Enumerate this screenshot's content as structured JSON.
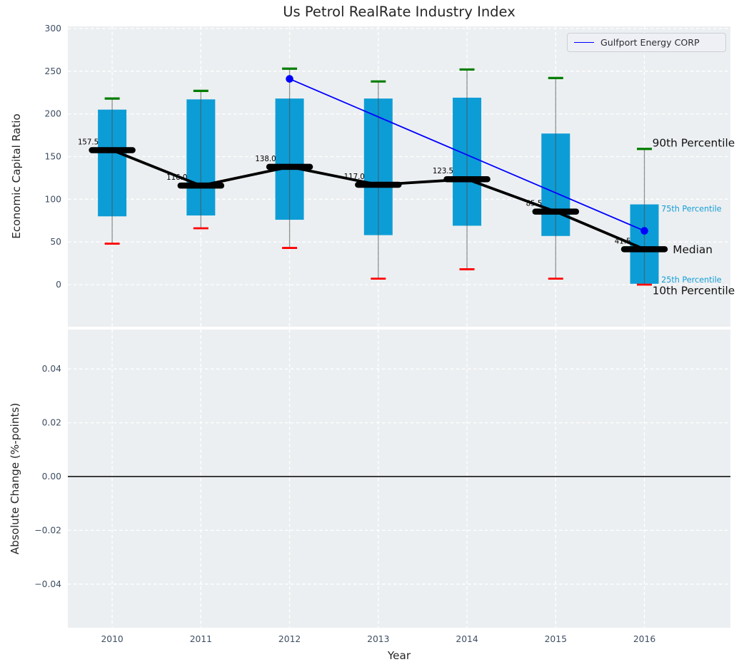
{
  "chart_data": {
    "type": "boxplot",
    "title": "Us Petrol RealRate Industry Index",
    "xlabel": "Year",
    "categories": [
      "2010",
      "2011",
      "2012",
      "2013",
      "2014",
      "2015",
      "2016"
    ],
    "x_values": [
      2010,
      2011,
      2012,
      2013,
      2014,
      2015,
      2016
    ],
    "xlim": [
      2009.5,
      2016.97
    ],
    "grid": "white dashed, on",
    "legend_position": "upper right",
    "top_panel": {
      "ylabel": "Economic Capital Ratio",
      "ylim": [
        -49.3,
        302.5
      ],
      "yticks": [
        0,
        50,
        100,
        150,
        200,
        250,
        300
      ],
      "ytick_labels": [
        "0",
        "50",
        "100",
        "150",
        "200",
        "250",
        "300"
      ],
      "boxes": [
        {
          "year": 2010,
          "p10": 48,
          "p25": 80,
          "median": 157.5,
          "p75": 205,
          "p90": 218,
          "label": "157.5"
        },
        {
          "year": 2011,
          "p10": 66,
          "p25": 81,
          "median": 116.0,
          "p75": 217,
          "p90": 227,
          "label": "116.0"
        },
        {
          "year": 2012,
          "p10": 43,
          "p25": 76,
          "median": 138.0,
          "p75": 218,
          "p90": 253,
          "label": "138.0"
        },
        {
          "year": 2013,
          "p10": 7,
          "p25": 58,
          "median": 117.0,
          "p75": 218,
          "p90": 238,
          "label": "117.0"
        },
        {
          "year": 2014,
          "p10": 18,
          "p25": 69,
          "median": 123.5,
          "p75": 219,
          "p90": 252,
          "label": "123.5"
        },
        {
          "year": 2015,
          "p10": 7,
          "p25": 57,
          "median": 85.5,
          "p75": 177,
          "p90": 242,
          "label": "85.5"
        },
        {
          "year": 2016,
          "p10": 0,
          "p25": 1,
          "median": 41.5,
          "p75": 94,
          "p90": 159,
          "label": "41.5"
        }
      ],
      "series": [
        {
          "name": "Gulfport Energy CORP",
          "color": "#0000ff",
          "points": [
            {
              "x": 2012,
              "y": 241
            },
            {
              "x": 2016,
              "y": 63
            }
          ]
        }
      ],
      "side_labels": [
        {
          "text": "90th Percentile",
          "x": 2016.09,
          "y": 166,
          "style": "large"
        },
        {
          "text": "75th Percentile",
          "x": 2016.19,
          "y": 88.5,
          "style": "small"
        },
        {
          "text": "Median",
          "x": 2016.32,
          "y": 41,
          "style": "large"
        },
        {
          "text": "25th Percentile",
          "x": 2016.19,
          "y": 5.5,
          "style": "small"
        },
        {
          "text": "10th Percentile",
          "x": 2016.09,
          "y": -7,
          "style": "large"
        }
      ],
      "legend": {
        "label": "Gulfport Energy CORP"
      }
    },
    "bottom_panel": {
      "ylabel": "Absolute Change (%-points)",
      "ylim": [
        -0.05623,
        0.05464
      ],
      "yticks": [
        0.04,
        0.02,
        0,
        -0.02,
        -0.04
      ],
      "ytick_labels": [
        "0.04",
        "0.02",
        "0.00",
        "−0.02",
        "−0.04"
      ],
      "zero_line": 0,
      "boxes": []
    },
    "colors": {
      "box_fill": "#0d9dd6",
      "median": "#000000",
      "median_line": "#000000",
      "whisker": "#4d4d4d",
      "cap_upper": "#007d00",
      "cap_lower": "#ff0000",
      "series_line": "#0000ff",
      "panel_bg": "#eceff1",
      "grid": "#ffffff",
      "tick_text": "#3e4e63",
      "axis_text": "#262626",
      "small_label": "#149dd8"
    }
  }
}
